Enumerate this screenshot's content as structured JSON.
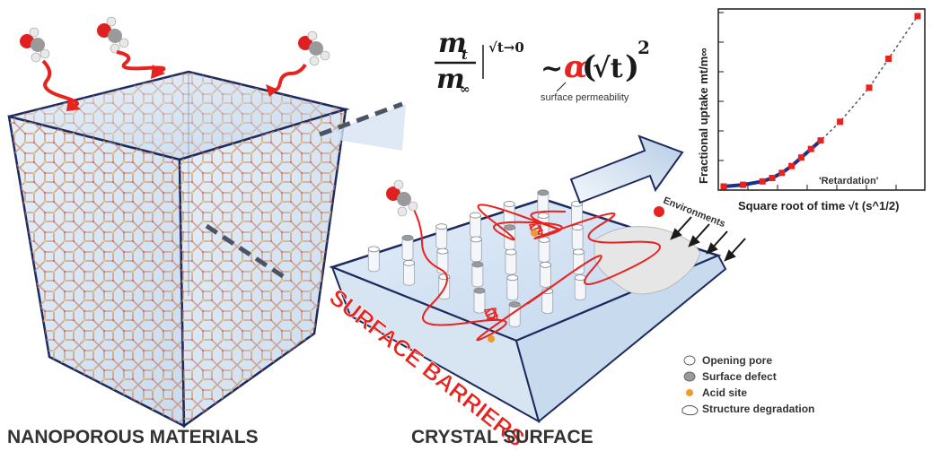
{
  "labels": {
    "left_title": "NANOPOROUS MATERIALS",
    "right_title": "CRYSTAL SURFACE",
    "barrier_text": "SURFACE BARRIERS",
    "environments": "Environments",
    "retardation": "'Retardation'"
  },
  "equation": {
    "numerator": "m",
    "numerator_sub": "t",
    "denominator": "m",
    "denominator_sub": "∞",
    "limit": "√t→0",
    "tilde": "~",
    "alpha": "α",
    "sqrt_t": "√t",
    "power": "2",
    "alpha_note": "surface permeability"
  },
  "legend": [
    {
      "label": "Opening pore",
      "icon": "white-circle-icon"
    },
    {
      "label": "Surface defect",
      "icon": "grey-circle-icon"
    },
    {
      "label": "Acid site",
      "icon": "orange-dot-icon"
    },
    {
      "label": "Structure degradation",
      "icon": "irregular-shape-icon"
    }
  ],
  "chart_data": {
    "type": "scatter",
    "title": "",
    "xlabel": "Square root of time √t (s^1/2)",
    "ylabel": "Fractional uptake mt/m∞",
    "xlim": [
      0,
      1
    ],
    "ylim": [
      0,
      1
    ],
    "series": [
      {
        "name": "",
        "x": [
          0.0,
          0.1,
          0.2,
          0.25,
          0.3,
          0.35,
          0.4,
          0.45,
          0.5,
          0.6,
          0.75,
          0.85,
          1.0
        ],
        "y": [
          0.0,
          0.01,
          0.03,
          0.05,
          0.08,
          0.12,
          0.17,
          0.22,
          0.27,
          0.38,
          0.58,
          0.75,
          1.0
        ]
      }
    ],
    "grid": false
  },
  "colors": {
    "red": "#e8231e",
    "navy": "#1e2a5e",
    "cube_fill": "#dce8f4",
    "surface_fill": "#cfe0f2"
  }
}
